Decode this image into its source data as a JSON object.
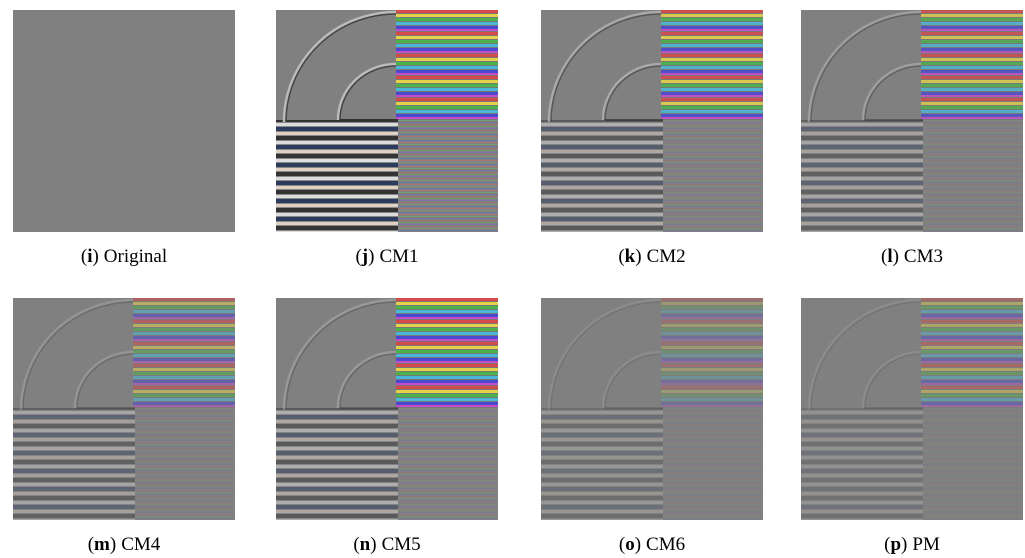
{
  "figure": {
    "panels": [
      {
        "caption": [
          "(",
          "i",
          ")",
          "Original"
        ]
      },
      {
        "caption": [
          "(",
          "j",
          ")",
          "CM1"
        ]
      },
      {
        "caption": [
          "(",
          "k",
          ")",
          "CM2"
        ]
      },
      {
        "caption": [
          "(",
          "l",
          ")",
          "CM3"
        ]
      },
      {
        "caption": [
          "(",
          "m",
          ")",
          "CM4"
        ]
      },
      {
        "caption": [
          "(",
          "n",
          ")",
          "CM5"
        ]
      },
      {
        "caption": [
          "(",
          "o",
          ")",
          "CM6"
        ]
      },
      {
        "caption": [
          "(",
          "p",
          ")",
          "PM"
        ]
      }
    ]
  }
}
